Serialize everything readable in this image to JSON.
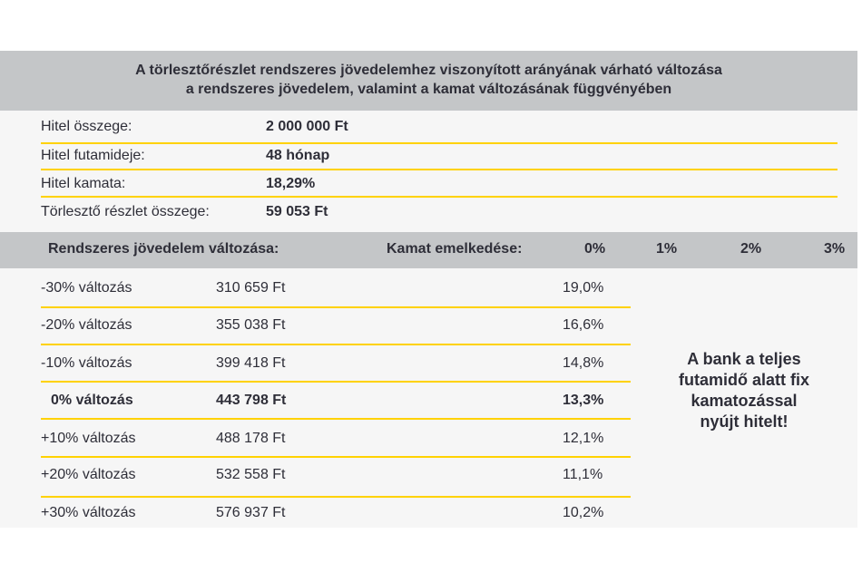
{
  "title": {
    "line1": "A törlesztőrészlet rendszeres jövedelemhez viszonyított arányának várható változása",
    "line2": "a rendszeres jövedelem, valamint a kamat változásának függvényében"
  },
  "loan_info": [
    {
      "label": "Hitel összege:",
      "value": "2 000 000 Ft"
    },
    {
      "label": "Hitel futamideje:",
      "value": "48 hónap"
    },
    {
      "label": "Hitel kamata:",
      "value": "18,29%"
    },
    {
      "label": "Törlesztő részlet összege:",
      "value": "59 053 Ft"
    }
  ],
  "header": {
    "income_change": "Rendszeres jövedelem változása:",
    "rate_increase": "Kamat emelkedése:",
    "rates": [
      "0%",
      "1%",
      "2%",
      "3%"
    ]
  },
  "rows": [
    {
      "change": "-30% változás",
      "income": "310 659 Ft",
      "ratio": "19,0%"
    },
    {
      "change": "-20% változás",
      "income": "355 038 Ft",
      "ratio": "16,6%"
    },
    {
      "change": "-10% változás",
      "income": "399 418 Ft",
      "ratio": "14,8%"
    },
    {
      "change": "0% változás",
      "income": "443 798 Ft",
      "ratio": "13,3%"
    },
    {
      "change": "+10% változás",
      "income": "488 178 Ft",
      "ratio": "12,1%"
    },
    {
      "change": "+20% változás",
      "income": "532 558 Ft",
      "ratio": "11,1%"
    },
    {
      "change": "+30% változás",
      "income": "576 937 Ft",
      "ratio": "10,2%"
    }
  ],
  "note": {
    "line1": "A bank a teljes",
    "line2": "futamidő alatt fix",
    "line3": "kamatozással",
    "line4": "nyújt hitelt!"
  },
  "colors": {
    "accent_line": "#ffd200",
    "header_bg": "#c4c6c8",
    "panel_bg": "#f6f6f6",
    "text": "#2e2e38"
  }
}
